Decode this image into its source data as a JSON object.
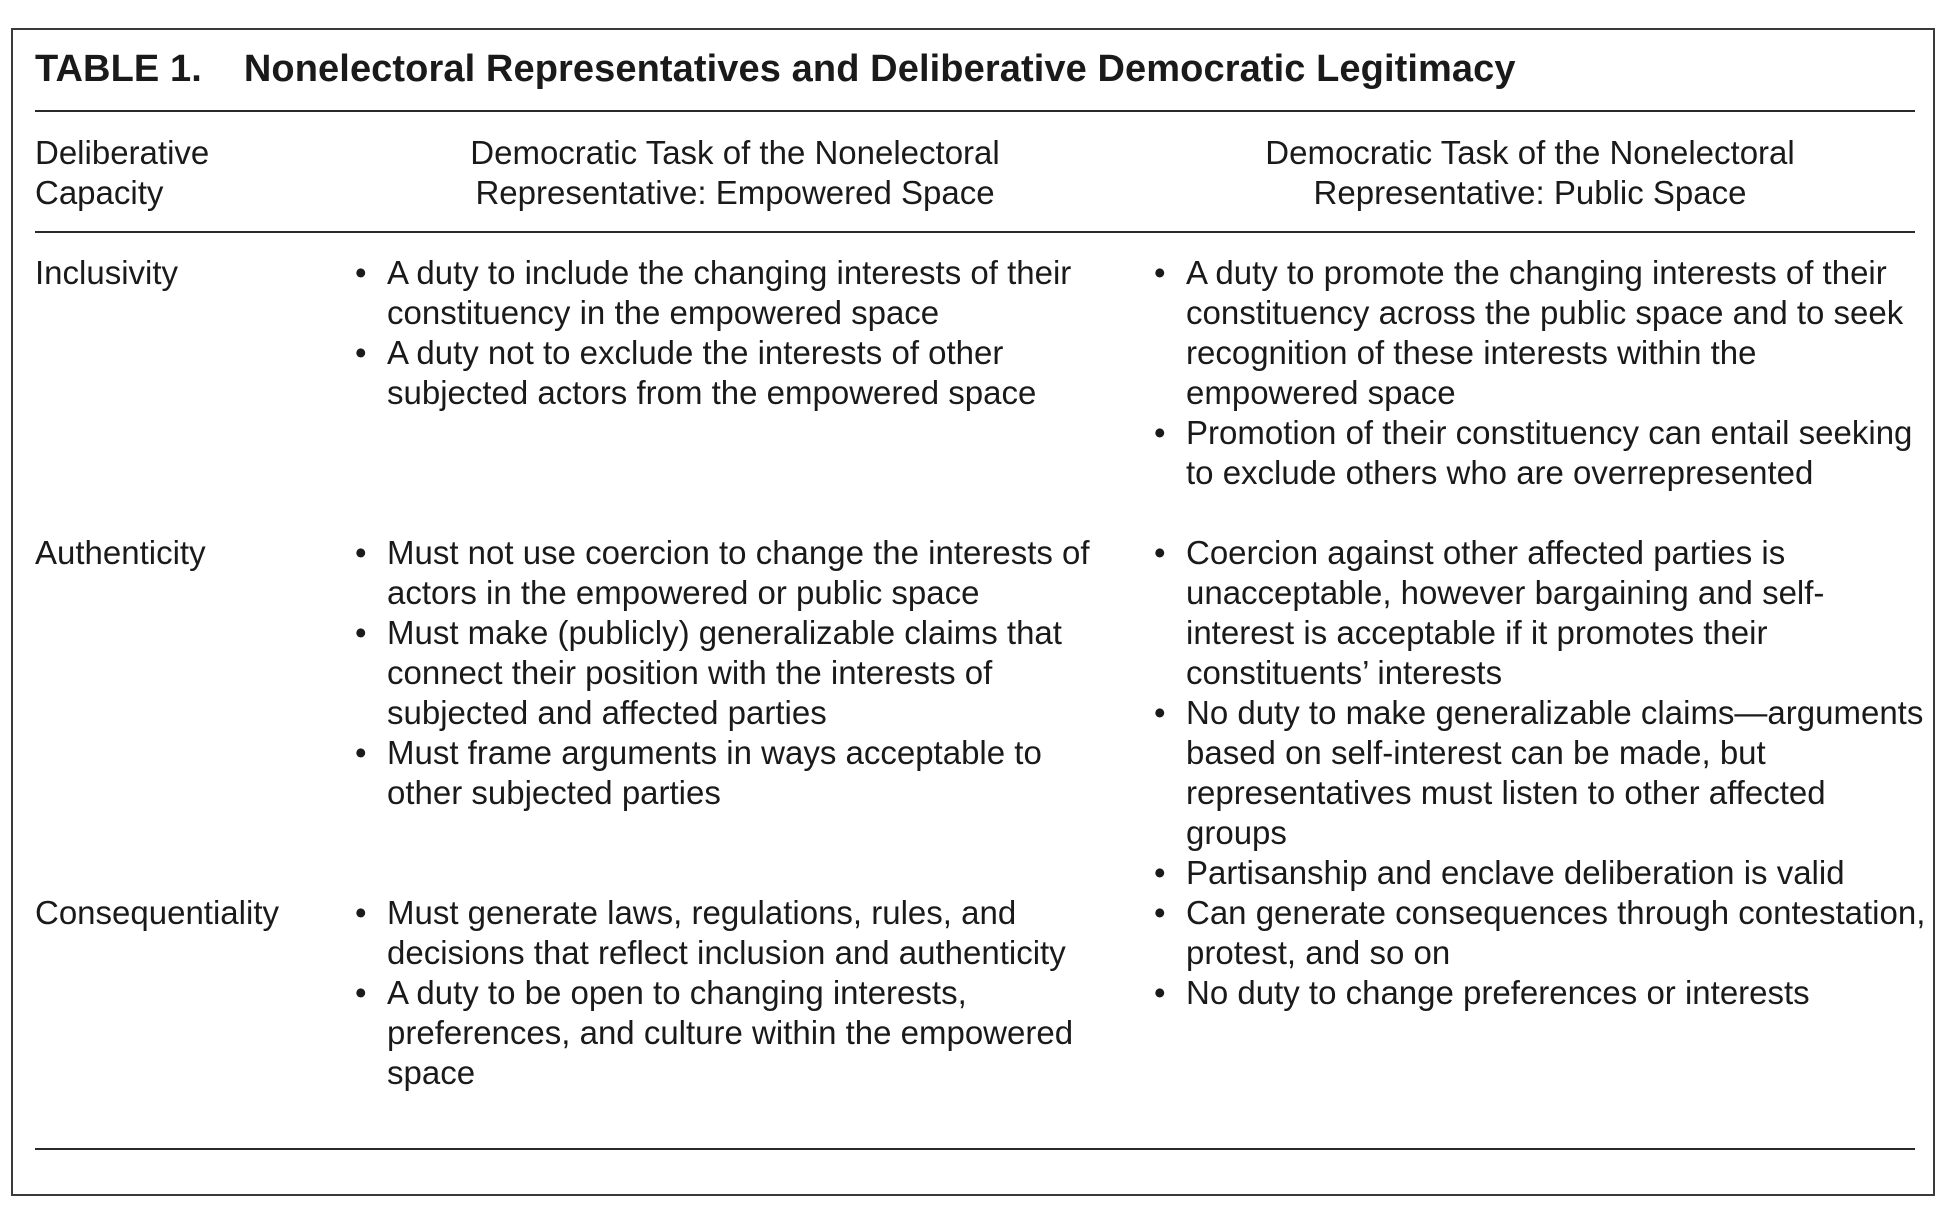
{
  "table": {
    "number": "TABLE 1.",
    "title": "Nonelectoral Representatives and Deliberative Democratic Legitimacy",
    "headers": {
      "col1": [
        "Deliberative",
        "Capacity"
      ],
      "col2": [
        "Democratic Task of the Nonelectoral",
        "Representative: Empowered Space"
      ],
      "col3": [
        "Democratic Task of the Nonelectoral",
        "Representative: Public Space"
      ]
    },
    "rows": [
      {
        "label": "Inclusivity",
        "empowered": [
          "A duty to include the changing interests of their constituency in the empowered space",
          "A duty not to exclude the interests of other subjected actors from the empowered space"
        ],
        "public": [
          "A duty to promote the changing interests of their constituency across the public space and to seek recognition of these interests within the empowered space",
          "Promotion of their constituency can entail seeking to exclude others who are overrepresented"
        ]
      },
      {
        "label": "Authenticity",
        "empowered": [
          "Must not use coercion to change the interests of actors in the empowered or public space",
          "Must make (publicly) generalizable claims that connect their position with the interests of subjected and affected parties",
          "Must frame arguments in ways acceptable to other subjected parties"
        ],
        "public": [
          "Coercion against other affected parties is unacceptable, however bargaining and self-interest is acceptable if it promotes their constituents’ interests",
          "No duty to make generalizable claims—arguments based on self-interest can be made, but representatives must listen to other affected groups",
          "Partisanship and enclave deliberation is valid"
        ]
      },
      {
        "label": "Consequentiality",
        "empowered": [
          "Must generate laws, regulations, rules, and decisions that reflect inclusion and authenticity",
          "A duty to be open to changing interests, preferences, and culture within the empowered space"
        ],
        "public": [
          "Can generate consequences through contestation, protest, and so on",
          "No duty to change preferences or interests"
        ]
      }
    ]
  }
}
